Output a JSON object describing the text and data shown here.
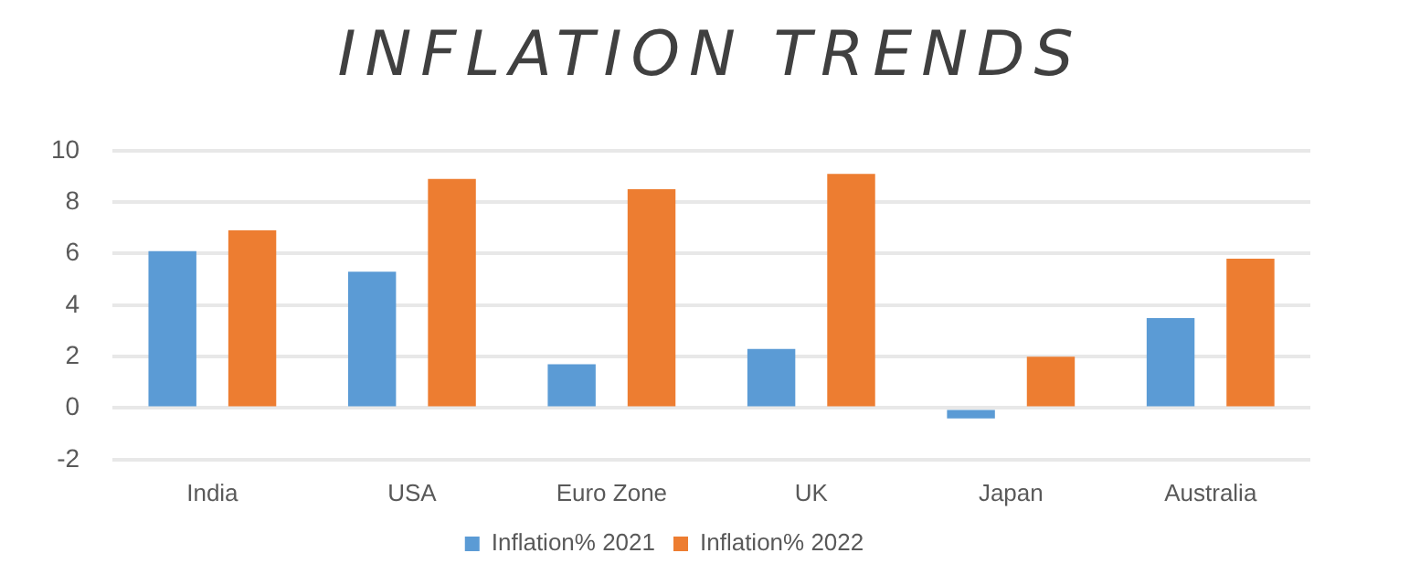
{
  "chart_data": {
    "type": "bar",
    "title": "INFLATION TRENDS",
    "categories": [
      "India",
      "USA",
      "Euro Zone",
      "UK",
      "Japan",
      "Australia"
    ],
    "series": [
      {
        "name": "Inflation% 2021",
        "color": "#5b9bd5",
        "values": [
          6.1,
          5.3,
          1.7,
          2.3,
          -0.4,
          3.5
        ]
      },
      {
        "name": "Inflation% 2022",
        "color": "#ed7d31",
        "values": [
          6.9,
          8.9,
          8.5,
          9.1,
          2.0,
          5.8
        ]
      }
    ],
    "ylim": [
      -2,
      10
    ],
    "yticks": [
      -2,
      0,
      2,
      4,
      6,
      8,
      10
    ],
    "grid": "y",
    "legend": "bottom"
  }
}
